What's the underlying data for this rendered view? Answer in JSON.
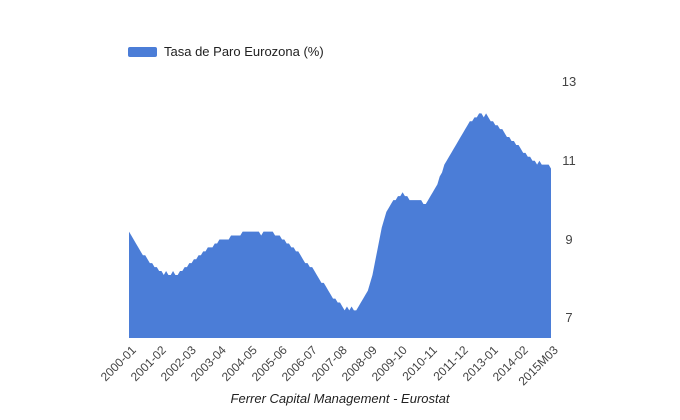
{
  "legend": {
    "series_label": "Tasa de Paro Eurozona (%)"
  },
  "footer": {
    "text": "Ferrer Capital Management - Eurostat"
  },
  "chart_data": {
    "type": "area",
    "title": "",
    "xlabel": "",
    "ylabel": "",
    "series_name": "Tasa de Paro Eurozona (%)",
    "x_unit": "monthly",
    "x_start": "2000-01",
    "x_end": "2015M03",
    "ylim": [
      6.5,
      13.5
    ],
    "y_ticks": [
      7,
      9,
      11,
      13
    ],
    "y_axis_position": "right",
    "grid": false,
    "legend_position": "top",
    "background_color": "#ffffff",
    "area_color": "#4b7dd7",
    "axis_label_color": "#444444",
    "x_ticks": [
      {
        "index": 0,
        "label": "2000-01"
      },
      {
        "index": 13,
        "label": "2001-02"
      },
      {
        "index": 26,
        "label": "2002-03"
      },
      {
        "index": 39,
        "label": "2003-04"
      },
      {
        "index": 52,
        "label": "2004-05"
      },
      {
        "index": 65,
        "label": "2005-06"
      },
      {
        "index": 78,
        "label": "2006-07"
      },
      {
        "index": 91,
        "label": "2007-08"
      },
      {
        "index": 104,
        "label": "2008-09"
      },
      {
        "index": 117,
        "label": "2009-10"
      },
      {
        "index": 130,
        "label": "2010-11"
      },
      {
        "index": 143,
        "label": "2011-12"
      },
      {
        "index": 156,
        "label": "2013-01"
      },
      {
        "index": 169,
        "label": "2014-02"
      },
      {
        "index": 182,
        "label": "2015M03"
      }
    ],
    "values": [
      9.2,
      9.1,
      9.0,
      8.9,
      8.8,
      8.7,
      8.6,
      8.6,
      8.5,
      8.4,
      8.4,
      8.3,
      8.3,
      8.2,
      8.2,
      8.1,
      8.2,
      8.1,
      8.1,
      8.2,
      8.1,
      8.1,
      8.2,
      8.2,
      8.3,
      8.3,
      8.4,
      8.4,
      8.5,
      8.5,
      8.6,
      8.6,
      8.7,
      8.7,
      8.8,
      8.8,
      8.8,
      8.9,
      8.9,
      9.0,
      9.0,
      9.0,
      9.0,
      9.0,
      9.1,
      9.1,
      9.1,
      9.1,
      9.1,
      9.2,
      9.2,
      9.2,
      9.2,
      9.2,
      9.2,
      9.2,
      9.2,
      9.1,
      9.2,
      9.2,
      9.2,
      9.2,
      9.2,
      9.1,
      9.1,
      9.1,
      9.0,
      9.0,
      8.9,
      8.9,
      8.8,
      8.8,
      8.7,
      8.7,
      8.6,
      8.5,
      8.4,
      8.4,
      8.3,
      8.3,
      8.2,
      8.1,
      8.0,
      7.9,
      7.9,
      7.8,
      7.7,
      7.6,
      7.5,
      7.5,
      7.4,
      7.4,
      7.3,
      7.2,
      7.3,
      7.2,
      7.3,
      7.2,
      7.2,
      7.3,
      7.4,
      7.5,
      7.6,
      7.7,
      7.9,
      8.1,
      8.4,
      8.7,
      9.0,
      9.3,
      9.5,
      9.7,
      9.8,
      9.9,
      10.0,
      10.0,
      10.1,
      10.1,
      10.2,
      10.1,
      10.1,
      10.0,
      10.0,
      10.0,
      10.0,
      10.0,
      10.0,
      9.9,
      9.9,
      10.0,
      10.1,
      10.2,
      10.3,
      10.4,
      10.6,
      10.7,
      10.9,
      11.0,
      11.1,
      11.2,
      11.3,
      11.4,
      11.5,
      11.6,
      11.7,
      11.8,
      11.9,
      12.0,
      12.0,
      12.1,
      12.1,
      12.2,
      12.2,
      12.1,
      12.2,
      12.1,
      12.0,
      12.0,
      11.9,
      11.9,
      11.8,
      11.8,
      11.7,
      11.6,
      11.6,
      11.5,
      11.5,
      11.4,
      11.4,
      11.3,
      11.2,
      11.2,
      11.1,
      11.1,
      11.0,
      11.0,
      10.9,
      11.0,
      10.9,
      10.9,
      10.9,
      10.9,
      10.8
    ]
  }
}
